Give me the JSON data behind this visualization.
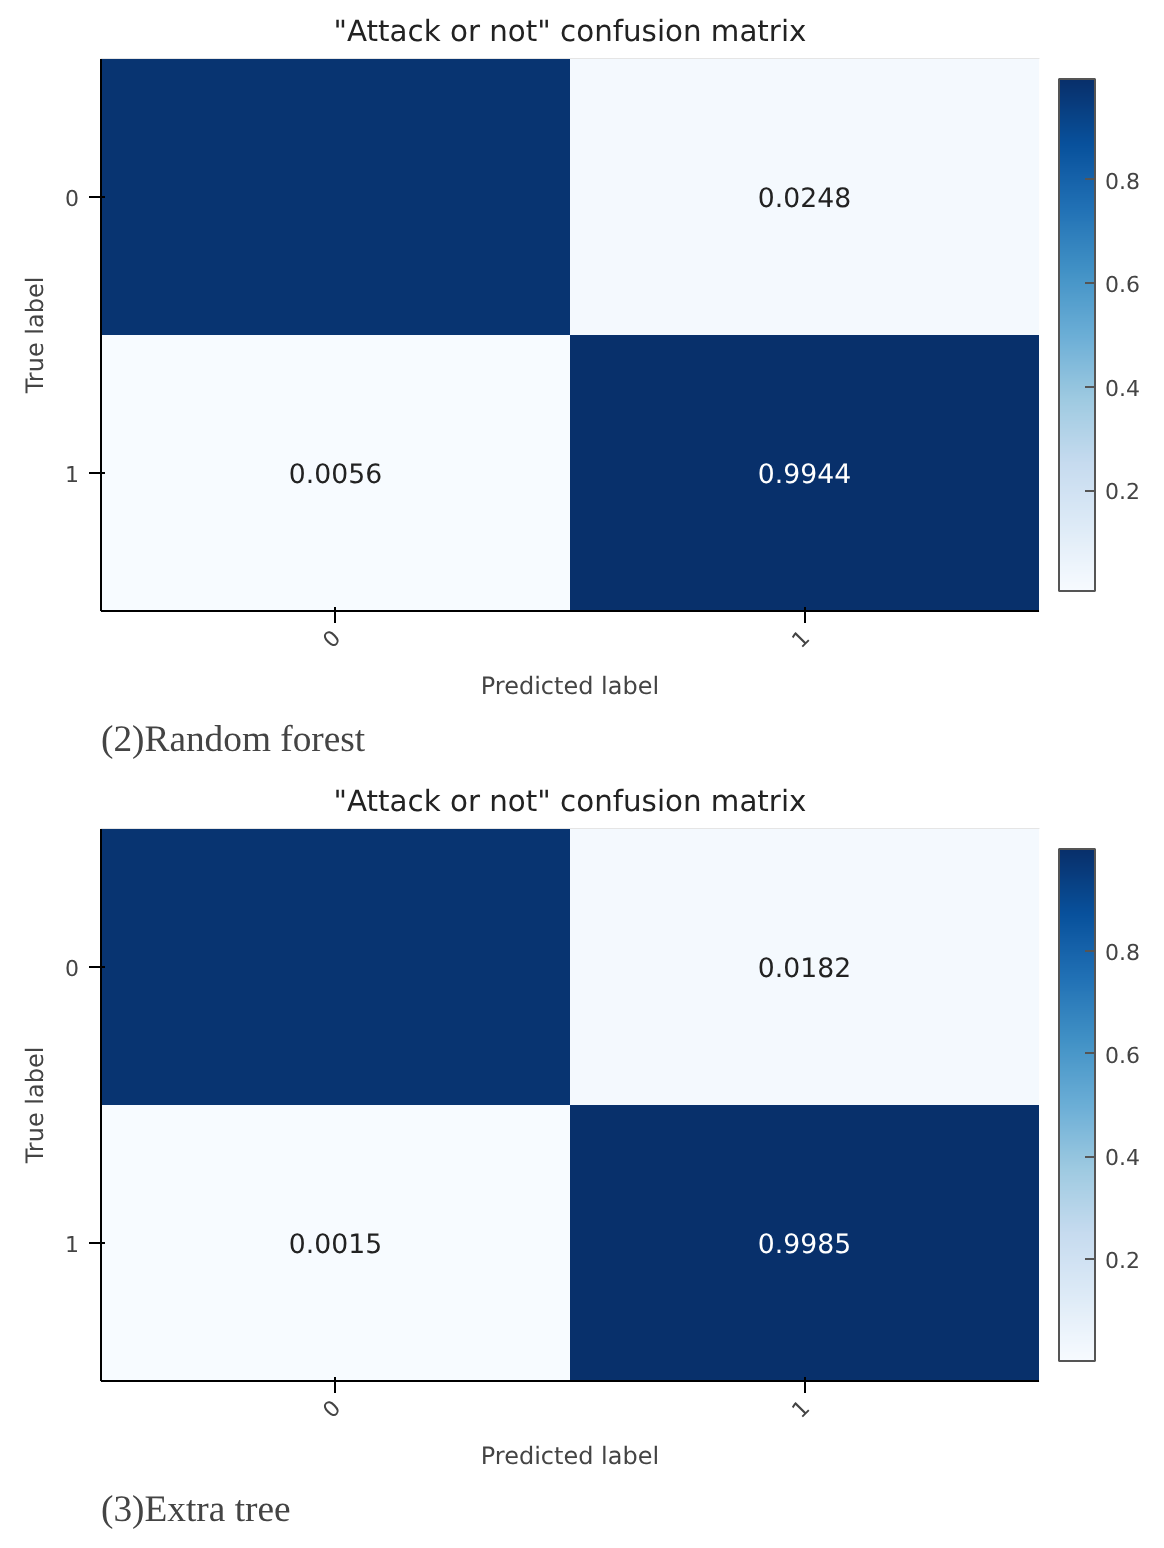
{
  "chart_data": [
    {
      "type": "heatmap",
      "title": "\"Attack or not\" confusion matrix",
      "xlabel": "Predicted label",
      "ylabel": "True label",
      "categories": [
        "0",
        "1"
      ],
      "y_categories": [
        "0",
        "1"
      ],
      "cells": [
        [
          0.9752,
          0.0248
        ],
        [
          0.0056,
          0.9944
        ]
      ],
      "cell_labels": [
        [
          null,
          "0.0248"
        ],
        [
          "0.0056",
          "0.9944"
        ]
      ],
      "clim": [
        0.0056,
        0.9944
      ],
      "cticks": [
        0.2,
        0.4,
        0.6,
        0.8
      ],
      "annotations": [
        "(2)Random forest"
      ]
    },
    {
      "type": "heatmap",
      "title": "\"Attack or not\" confusion matrix",
      "xlabel": "Predicted label",
      "ylabel": "True label",
      "categories": [
        "0",
        "1"
      ],
      "y_categories": [
        "0",
        "1"
      ],
      "cells": [
        [
          0.9818,
          0.0182
        ],
        [
          0.0015,
          0.9985
        ]
      ],
      "cell_labels": [
        [
          null,
          "0.0182"
        ],
        [
          "0.0015",
          "0.9985"
        ]
      ],
      "clim": [
        0.0015,
        0.9985
      ],
      "cticks": [
        0.2,
        0.4,
        0.6,
        0.8
      ],
      "annotations": [
        "(3)Extra tree"
      ]
    }
  ]
}
